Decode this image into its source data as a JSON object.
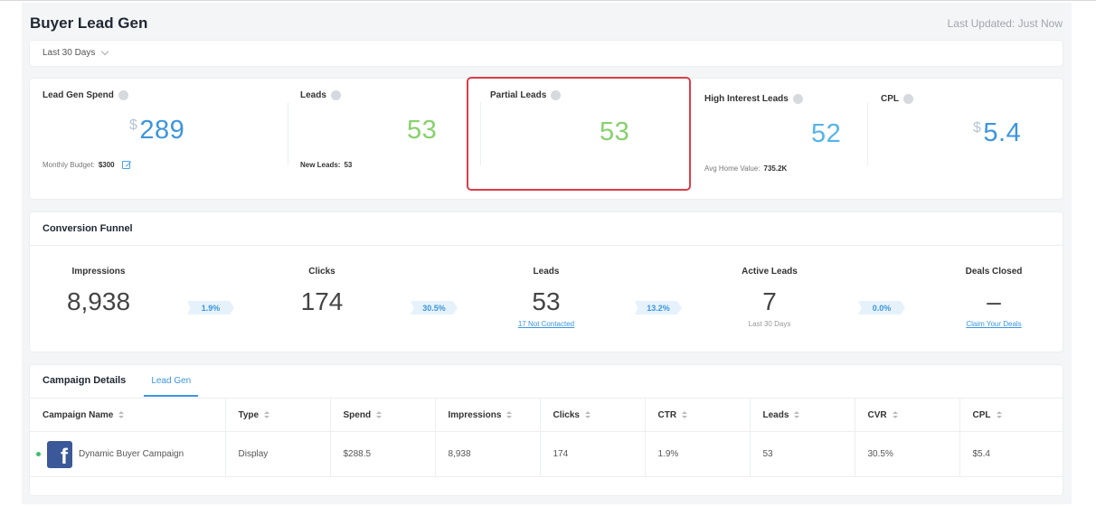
{
  "header": {
    "title": "Buyer Lead Gen",
    "last_updated": "Last Updated: Just Now"
  },
  "filter": {
    "date_range": "Last 30 Days"
  },
  "metrics": {
    "spend": {
      "label": "Lead Gen Spend",
      "currency": "$",
      "value": "289",
      "sub_label": "Monthly Budget:",
      "sub_value": "$300"
    },
    "leads": {
      "label": "Leads",
      "value": "53",
      "sub_label": "New Leads:",
      "sub_value": "53"
    },
    "partial": {
      "label": "Partial Leads",
      "value": "53"
    },
    "high_interest": {
      "label": "High Interest Leads",
      "value": "52",
      "sub_label": "Avg Home Value:",
      "sub_value": "735.2K"
    },
    "cpl": {
      "label": "CPL",
      "currency": "$",
      "value": "5.4"
    }
  },
  "funnel": {
    "title": "Conversion Funnel",
    "stages": [
      {
        "label": "Impressions",
        "value": "8,938",
        "sub": ""
      },
      {
        "label": "Clicks",
        "value": "174",
        "sub": ""
      },
      {
        "label": "Leads",
        "value": "53",
        "sub": "17 Not Contacted"
      },
      {
        "label": "Active Leads",
        "value": "7",
        "sub": "Last 30 Days"
      },
      {
        "label": "Deals Closed",
        "value": "–",
        "sub": "Claim Your Deals"
      }
    ],
    "rates": [
      "1.9%",
      "30.5%",
      "13.2%",
      "0.0%"
    ]
  },
  "campaigns": {
    "title": "Campaign Details",
    "tab": "Lead Gen",
    "columns": [
      "Campaign Name",
      "Type",
      "Spend",
      "Impressions",
      "Clicks",
      "CTR",
      "Leads",
      "CVR",
      "CPL"
    ],
    "rows": [
      {
        "name": "Dynamic Buyer Campaign",
        "type": "Display",
        "spend": "$288.5",
        "impressions": "8,938",
        "clicks": "174",
        "ctr": "1.9%",
        "leads": "53",
        "cvr": "30.5%",
        "cpl": "$5.4",
        "icon": "facebook-icon"
      }
    ]
  },
  "colors": {
    "accent_blue": "#3c95de",
    "value_green": "#86d16c",
    "highlight_red": "#dc3d4a",
    "facebook_blue": "#3b5998"
  }
}
